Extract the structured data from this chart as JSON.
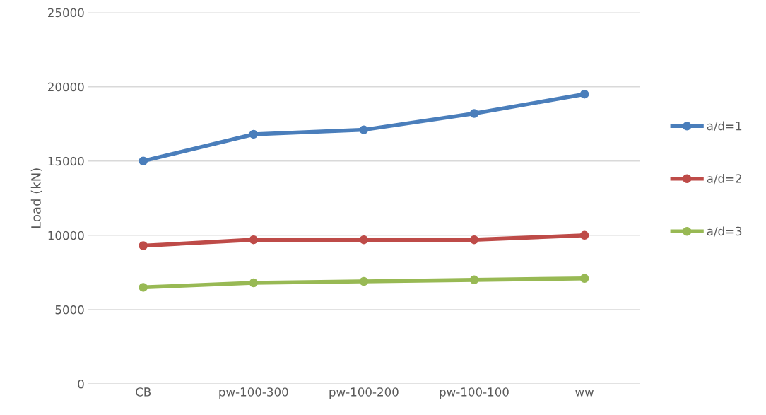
{
  "chart_data": {
    "type": "line",
    "ylabel": "Load (kN)",
    "categories": [
      "CB",
      "pw-100-300",
      "pw-100-200",
      "pw-100-100",
      "ww"
    ],
    "series": [
      {
        "name": "a/d=1",
        "color": "#4a7ebb",
        "values": [
          15000,
          16800,
          17100,
          18200,
          19500
        ]
      },
      {
        "name": "a/d=2",
        "color": "#be4b48",
        "values": [
          9300,
          9700,
          9700,
          9700,
          10000
        ]
      },
      {
        "name": "a/d=3",
        "color": "#98b954",
        "values": [
          6500,
          6800,
          6900,
          7000,
          7100
        ]
      }
    ],
    "ylim": [
      0,
      25000
    ],
    "yticks": [
      0,
      5000,
      10000,
      15000,
      20000,
      25000
    ],
    "grid": "y",
    "legend": "right",
    "marker": "circle",
    "line_style": "solid"
  }
}
